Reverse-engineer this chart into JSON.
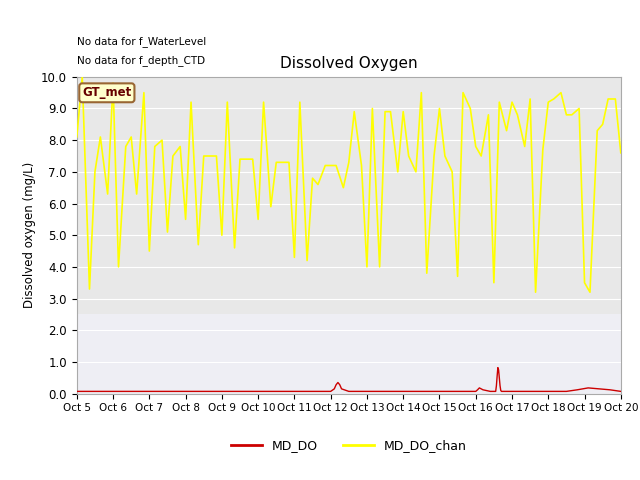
{
  "title": "Dissolved Oxygen",
  "ylabel": "Dissolved oxygen (mg/L)",
  "text_no_data_1": "No data for f_WaterLevel",
  "text_no_data_2": "No data for f_depth_CTD",
  "gt_met_label": "GT_met",
  "ylim": [
    0.0,
    10.0
  ],
  "yticks": [
    0.0,
    1.0,
    2.0,
    3.0,
    4.0,
    5.0,
    6.0,
    7.0,
    8.0,
    9.0,
    10.0
  ],
  "xtick_labels": [
    "Oct 5",
    "Oct 6",
    "Oct 7",
    "Oct 8",
    "Oct 9",
    "Oct 10",
    "Oct 11",
    "Oct 12",
    "Oct 13",
    "Oct 14",
    "Oct 15",
    "Oct 16",
    "Oct 17",
    "Oct 18",
    "Oct 19",
    "Oct 20"
  ],
  "bg_color_upper": "#e8e8e8",
  "bg_color_lower": "#eeeef4",
  "line_color_md_do": "#cc0000",
  "line_color_md_do_chan": "#ffff00",
  "legend_entries": [
    "MD_DO",
    "MD_DO_chan"
  ],
  "gt_met_box_facecolor": "#ffffcc",
  "gt_met_box_edgecolor": "#996633",
  "md_do_chan_x": [
    0.0,
    0.15,
    0.35,
    0.5,
    0.65,
    0.85,
    1.0,
    1.15,
    1.35,
    1.5,
    1.65,
    1.85,
    2.0,
    2.15,
    2.35,
    2.5,
    2.65,
    2.85,
    3.0,
    3.15,
    3.35,
    3.5,
    3.65,
    3.85,
    4.0,
    4.15,
    4.35,
    4.5,
    4.65,
    4.85,
    5.0,
    5.15,
    5.35,
    5.5,
    5.65,
    5.85,
    6.0,
    6.15,
    6.35,
    6.5,
    6.65,
    6.85,
    7.0,
    7.15,
    7.35,
    7.5,
    7.65,
    7.85,
    8.0,
    8.15,
    8.35,
    8.5,
    8.65,
    8.85,
    9.0,
    9.15,
    9.35,
    9.5,
    9.65,
    9.85,
    10.0,
    10.15,
    10.35,
    10.5,
    10.65,
    10.85,
    11.0,
    11.15,
    11.35,
    11.5,
    11.65,
    11.85,
    12.0,
    12.15,
    12.35,
    12.5,
    12.65,
    12.85,
    13.0,
    13.15,
    13.35,
    13.5,
    13.65,
    13.85,
    14.0,
    14.15,
    14.35,
    14.5,
    14.65,
    14.85,
    15.0
  ],
  "md_do_chan_y": [
    8.1,
    10.0,
    3.3,
    7.0,
    8.1,
    6.3,
    9.8,
    4.0,
    7.8,
    8.1,
    6.3,
    9.5,
    4.5,
    7.8,
    8.0,
    5.1,
    7.5,
    7.8,
    5.5,
    9.2,
    4.7,
    7.5,
    7.5,
    7.5,
    5.0,
    9.2,
    4.6,
    7.4,
    7.4,
    7.4,
    5.5,
    9.2,
    5.9,
    7.3,
    7.3,
    7.3,
    4.3,
    9.2,
    4.2,
    6.8,
    6.6,
    7.2,
    7.2,
    7.2,
    6.5,
    7.3,
    8.9,
    7.2,
    4.0,
    9.0,
    4.0,
    8.9,
    8.9,
    7.0,
    8.9,
    7.5,
    7.0,
    9.5,
    3.8,
    7.5,
    9.0,
    7.5,
    7.0,
    3.7,
    9.5,
    9.0,
    7.8,
    7.5,
    8.8,
    3.5,
    9.2,
    8.3,
    9.2,
    8.8,
    7.8,
    9.3,
    3.2,
    7.7,
    9.2,
    9.3,
    9.5,
    8.8,
    8.8,
    9.0,
    3.5,
    3.2,
    8.3,
    8.5,
    9.3,
    9.3,
    7.6
  ],
  "md_do_x": [
    0.0,
    0.3,
    0.6,
    0.9,
    1.2,
    1.5,
    1.8,
    2.1,
    2.4,
    2.7,
    3.0,
    3.3,
    3.6,
    3.9,
    4.2,
    4.5,
    4.8,
    5.1,
    5.4,
    5.7,
    6.0,
    6.3,
    6.6,
    6.9,
    7.0,
    7.1,
    7.15,
    7.2,
    7.25,
    7.3,
    7.5,
    7.8,
    8.1,
    8.4,
    8.7,
    9.0,
    9.3,
    9.6,
    9.9,
    10.2,
    10.5,
    10.8,
    11.0,
    11.05,
    11.1,
    11.15,
    11.2,
    11.4,
    11.55,
    11.57,
    11.59,
    11.61,
    11.63,
    11.65,
    11.67,
    11.69,
    11.71,
    11.8,
    12.0,
    12.3,
    12.6,
    12.9,
    13.2,
    13.5,
    13.8,
    14.1,
    14.4,
    14.7,
    15.0
  ],
  "md_do_y": [
    0.07,
    0.07,
    0.07,
    0.07,
    0.07,
    0.07,
    0.07,
    0.07,
    0.07,
    0.07,
    0.07,
    0.07,
    0.07,
    0.07,
    0.07,
    0.07,
    0.07,
    0.07,
    0.07,
    0.07,
    0.07,
    0.07,
    0.07,
    0.07,
    0.07,
    0.15,
    0.28,
    0.35,
    0.28,
    0.15,
    0.07,
    0.07,
    0.07,
    0.07,
    0.07,
    0.07,
    0.07,
    0.07,
    0.07,
    0.07,
    0.07,
    0.07,
    0.07,
    0.12,
    0.18,
    0.15,
    0.12,
    0.07,
    0.07,
    0.25,
    0.55,
    0.82,
    0.75,
    0.5,
    0.25,
    0.1,
    0.07,
    0.07,
    0.07,
    0.07,
    0.07,
    0.07,
    0.07,
    0.07,
    0.12,
    0.18,
    0.15,
    0.12,
    0.07
  ]
}
